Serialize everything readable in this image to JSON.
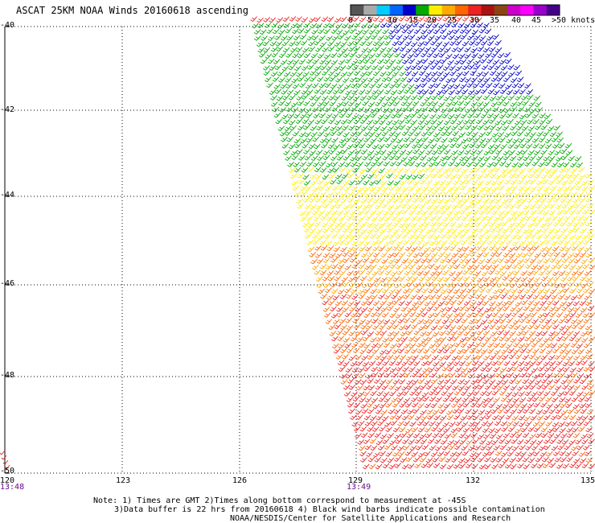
{
  "title": "ASCAT 25KM NOAA Winds 20160618 ascending",
  "colorbar": {
    "colors": [
      "#555555",
      "#aaaaaa",
      "#00ccff",
      "#0066ff",
      "#0000cc",
      "#00aa00",
      "#ffee00",
      "#ffaa00",
      "#ff6600",
      "#ee2222",
      "#aa1111",
      "#8b4513",
      "#cc00cc",
      "#ff00ff",
      "#9900cc",
      "#440088"
    ],
    "labels": [
      "0",
      "5",
      "10",
      "15",
      "20",
      "25",
      "30",
      "35",
      "40",
      "45",
      ">50 knots"
    ]
  },
  "lat_labels": [
    "-40",
    "-42",
    "-44",
    "-46",
    "-48",
    "-50"
  ],
  "lon_labels": [
    "120",
    "123",
    "126",
    "129",
    "132",
    "135"
  ],
  "time_labels": [
    "13:48",
    "13:49"
  ],
  "notes": [
    "Note: 1) Times are GMT 2)Times along bottom correspond to measurement at -45S",
    "3)Data buffer is 22 hrs from 20160618 4) Black wind barbs indicate possible contamination",
    "NOAA/NESDIS/Center for Satellite Applications and Research"
  ],
  "map_data": {
    "lon_range": [
      120,
      135
    ],
    "lat_range": [
      -40,
      -50
    ],
    "grid": true,
    "swath": "diagonal band from upper-center to lower-right",
    "wind_zones_by_lat": [
      {
        "lat_from": -40,
        "lat_to": -41.5,
        "color": "#0000cc",
        "speed": "15-20"
      },
      {
        "lat_from": -40,
        "lat_to": -43.5,
        "color": "#00aa00",
        "speed": "20-25"
      },
      {
        "lat_from": -43,
        "lat_to": -45,
        "color": "#ffee00",
        "speed": "25-30"
      },
      {
        "lat_from": -45,
        "lat_to": -46,
        "color": "#ffaa00",
        "speed": "30"
      },
      {
        "lat_from": -46,
        "lat_to": -47.5,
        "color": "#ff6600",
        "speed": "30-35"
      },
      {
        "lat_from": -47.5,
        "lat_to": -50,
        "color": "#ee2222",
        "speed": "35-40"
      }
    ]
  }
}
